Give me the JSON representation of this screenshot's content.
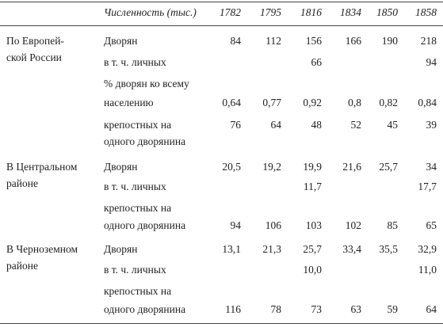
{
  "header": {
    "label": "Численность (тыс.)",
    "years": [
      1782,
      1795,
      1816,
      1834,
      1850,
      1858
    ]
  },
  "groups": [
    {
      "region": [
        "По Европей-",
        "ской России"
      ],
      "rows": [
        {
          "label": [
            "Дворян"
          ],
          "values": [
            "84",
            "112",
            "156",
            "166",
            "190",
            "218"
          ]
        },
        {
          "label": [
            "в т. ч. личных"
          ],
          "values": [
            null,
            null,
            "66",
            null,
            null,
            "94"
          ]
        },
        {
          "label": [
            "% дворян ко всему",
            "населению"
          ],
          "values": [
            "0,64",
            "0,77",
            "0,92",
            "0,8",
            "0,82",
            "0,84"
          ]
        },
        {
          "label": [
            "крепостных на",
            "одного дворянина"
          ],
          "values": [
            "76",
            "64",
            "48",
            "52",
            "45",
            "39"
          ]
        }
      ]
    },
    {
      "region": [
        "В Центральном",
        "районе"
      ],
      "rows": [
        {
          "label": [
            "Дворян"
          ],
          "values": [
            "20,5",
            "19,2",
            "19,9",
            "21,6",
            "25,7",
            "34"
          ]
        },
        {
          "label": [
            "в т. ч. личных"
          ],
          "values": [
            null,
            null,
            "11,7",
            null,
            null,
            "17,7"
          ]
        },
        {
          "label": [
            "крепостных на",
            "одного дворянина"
          ],
          "values": [
            "94",
            "106",
            "103",
            "102",
            "85",
            "65"
          ]
        }
      ]
    },
    {
      "region": [
        "В Черноземном",
        "районе"
      ],
      "rows": [
        {
          "label": [
            "Дворян"
          ],
          "values": [
            "13,1",
            "21,3",
            "25,7",
            "33,4",
            "35,5",
            "32,9"
          ]
        },
        {
          "label": [
            "в т. ч. личных"
          ],
          "values": [
            null,
            null,
            "10,0",
            null,
            null,
            "11,0"
          ]
        },
        {
          "label": [
            "крепостных на",
            "одного дворянина"
          ],
          "values": [
            "116",
            "78",
            "73",
            "63",
            "59",
            "64"
          ]
        }
      ]
    }
  ]
}
